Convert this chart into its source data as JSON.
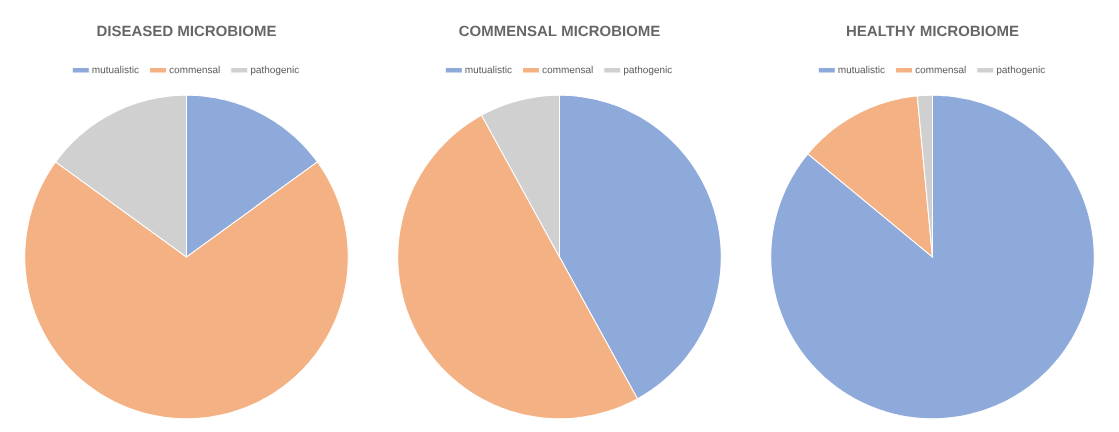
{
  "chart_data": [
    {
      "type": "pie",
      "title": "DISEASED MICROBIOME",
      "categories": [
        "mutualistic",
        "commensal",
        "pathogenic"
      ],
      "values": [
        15,
        70,
        15
      ],
      "colors": [
        "#8eaadb",
        "#f4b183",
        "#d0d0d0"
      ],
      "legend": "top"
    },
    {
      "type": "pie",
      "title": "COMMENSAL MICROBIOME",
      "categories": [
        "mutualistic",
        "commensal",
        "pathogenic"
      ],
      "values": [
        42,
        50,
        8
      ],
      "colors": [
        "#8eaadb",
        "#f4b183",
        "#d0d0d0"
      ],
      "legend": "top"
    },
    {
      "type": "pie",
      "title": "HEALTHY MICROBIOME",
      "categories": [
        "mutualistic",
        "commensal",
        "pathogenic"
      ],
      "values": [
        86,
        12.5,
        1.5
      ],
      "colors": [
        "#8eaadb",
        "#f4b183",
        "#d0d0d0"
      ],
      "legend": "top"
    }
  ]
}
